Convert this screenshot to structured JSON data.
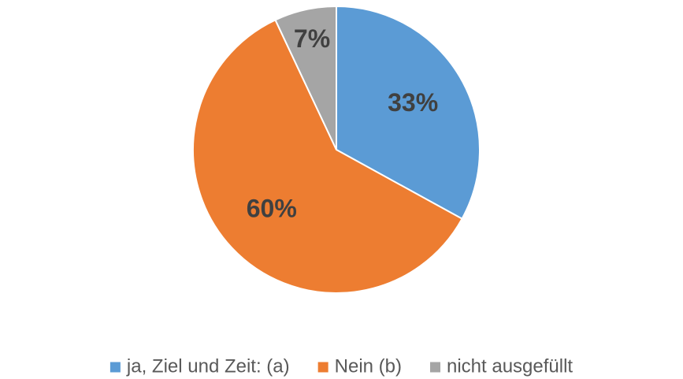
{
  "chart_data": {
    "type": "pie",
    "categories": [
      "ja, Ziel und Zeit: (a)",
      "Nein (b)",
      "nicht ausgefüllt"
    ],
    "values": [
      33,
      60,
      7
    ],
    "value_labels": [
      "33%",
      "60%",
      "7%"
    ],
    "colors": [
      "#5b9bd5",
      "#ed7d31",
      "#a5a5a5"
    ],
    "legend": "bottom"
  }
}
